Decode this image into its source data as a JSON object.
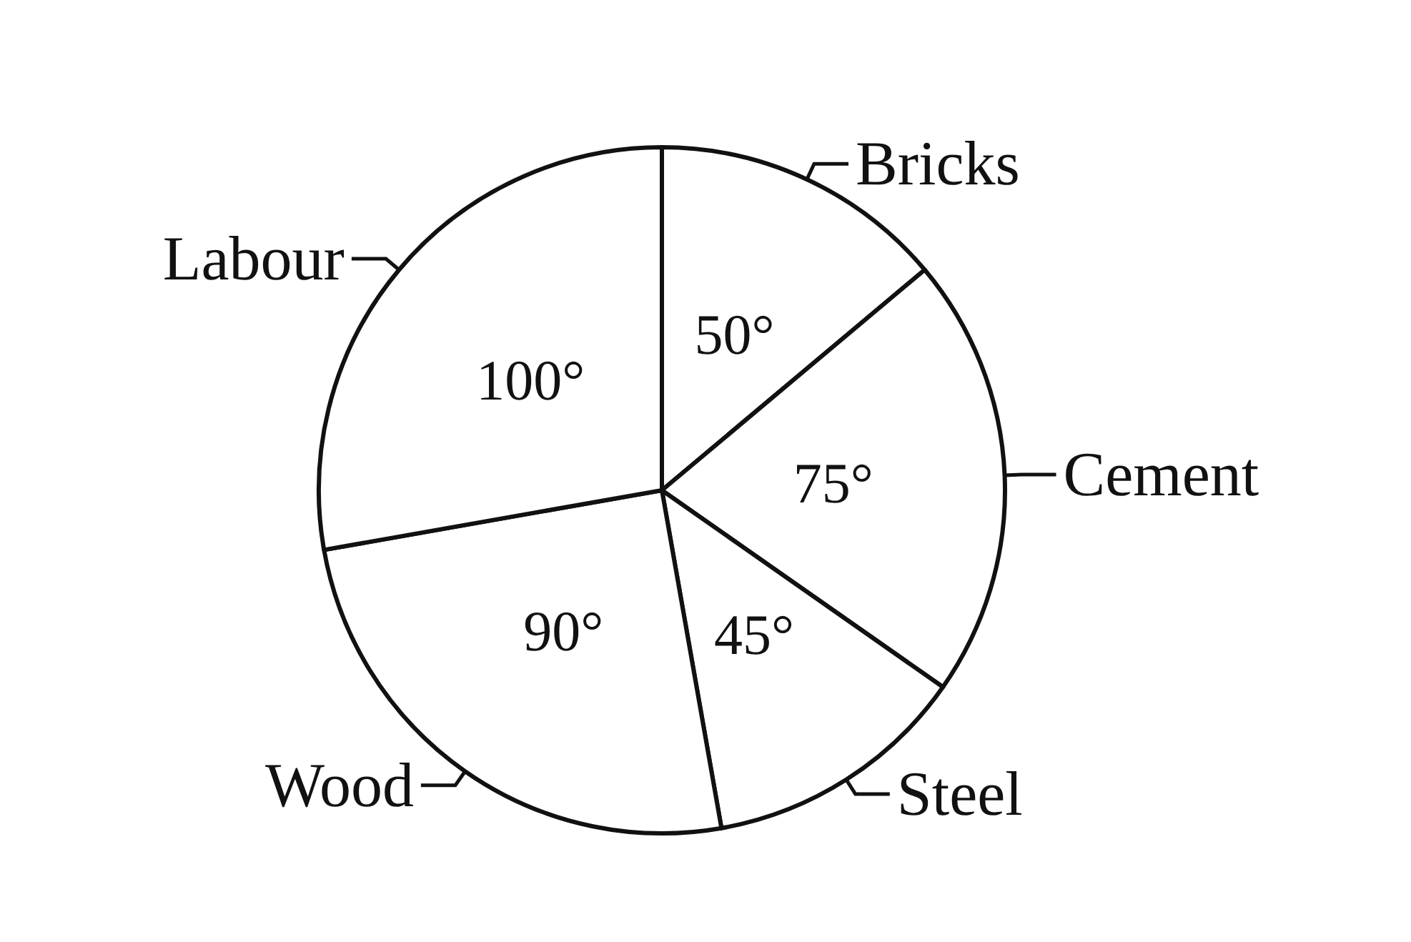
{
  "chart_data": {
    "type": "pie",
    "categories": [
      "Bricks",
      "Cement",
      "Steel",
      "Wood",
      "Labour"
    ],
    "values": [
      50,
      75,
      45,
      90,
      100
    ],
    "value_labels": [
      "50°",
      "75°",
      "45°",
      "90°",
      "100°"
    ],
    "colors": [
      "#ffffff",
      "#ffffff",
      "#ffffff",
      "#ffffff",
      "#ffffff"
    ]
  }
}
